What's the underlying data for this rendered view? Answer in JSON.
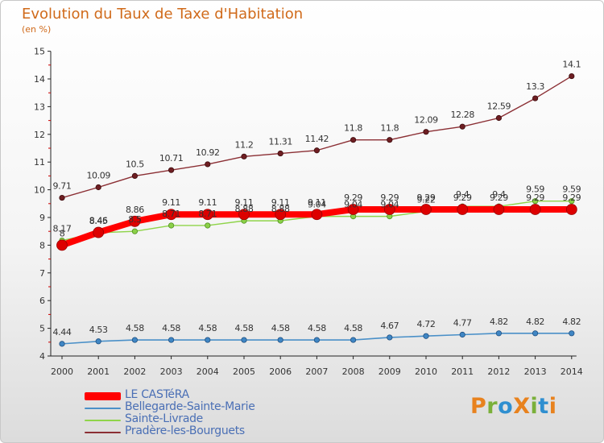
{
  "title": "Evolution du Taux de Taxe d'Habitation",
  "unit_label": "(en %)",
  "logo": {
    "text": "ProXiti",
    "letters": [
      {
        "ch": "P",
        "color": "#e8821e"
      },
      {
        "ch": "r",
        "color": "#7ab03a"
      },
      {
        "ch": "o",
        "color": "#2f8fd0"
      },
      {
        "ch": "X",
        "color": "#e8821e"
      },
      {
        "ch": "i",
        "color": "#7ab03a"
      },
      {
        "ch": "t",
        "color": "#2f8fd0"
      },
      {
        "ch": "i",
        "color": "#e8821e"
      }
    ]
  },
  "chart_data": {
    "type": "line",
    "title": "Evolution du Taux de Taxe d'Habitation",
    "ylabel": "(en %)",
    "xlabel": "",
    "x": [
      2000,
      2001,
      2002,
      2003,
      2004,
      2005,
      2006,
      2007,
      2008,
      2009,
      2010,
      2011,
      2012,
      2013,
      2014
    ],
    "ylim": [
      4,
      15
    ],
    "yticks": [
      4,
      5,
      6,
      7,
      8,
      9,
      10,
      11,
      12,
      13,
      14,
      15
    ],
    "grid": false,
    "legend_position": "bottom-left",
    "series": [
      {
        "name": "LE CASTéRA",
        "color": "#ff0000",
        "values": [
          8.0,
          8.46,
          8.86,
          9.11,
          9.11,
          9.11,
          9.11,
          9.11,
          9.29,
          9.29,
          9.29,
          9.29,
          9.29,
          9.29,
          9.29
        ],
        "labels": [
          "8",
          "8.46",
          "8.86",
          "9.11",
          "9.11",
          "9.11",
          "9.11",
          "9.11",
          "9.29",
          "9.29",
          "9.29",
          "9.29",
          "9.29",
          "9.29",
          "9.29"
        ]
      },
      {
        "name": "Bellegarde-Sainte-Marie",
        "color": "#4a90c8",
        "values": [
          4.44,
          4.53,
          4.58,
          4.58,
          4.58,
          4.58,
          4.58,
          4.58,
          4.58,
          4.67,
          4.72,
          4.77,
          4.82,
          4.82,
          4.82
        ],
        "labels": [
          "4.44",
          "4.53",
          "4.58",
          "4.58",
          "4.58",
          "4.58",
          "4.58",
          "4.58",
          "4.58",
          "4.67",
          "4.72",
          "4.77",
          "4.82",
          "4.82",
          "4.82"
        ]
      },
      {
        "name": "Sainte-Livrade",
        "color": "#8fd44a",
        "values": [
          8.17,
          8.45,
          8.5,
          8.71,
          8.71,
          8.88,
          8.88,
          9.04,
          9.04,
          9.04,
          9.22,
          9.4,
          9.4,
          9.59,
          9.59
        ],
        "labels": [
          "8.17",
          "8.45",
          "8.5",
          "8.71",
          "8.71",
          "8.88",
          "8.88",
          "9.04",
          "9.04",
          "9.04",
          "9.22",
          "9.4",
          "9.4",
          "9.59",
          "9.59"
        ]
      },
      {
        "name": "Pradère-les-Bourguets",
        "color": "#8b2f34",
        "values": [
          9.71,
          10.09,
          10.5,
          10.71,
          10.92,
          11.2,
          11.31,
          11.42,
          11.8,
          11.8,
          12.09,
          12.28,
          12.59,
          13.3,
          14.1
        ],
        "labels": [
          "9.71",
          "10.09",
          "10.5",
          "10.71",
          "10.92",
          "11.2",
          "11.31",
          "11.42",
          "11.8",
          "11.8",
          "12.09",
          "12.28",
          "12.59",
          "13.3",
          "14.1"
        ]
      }
    ]
  }
}
